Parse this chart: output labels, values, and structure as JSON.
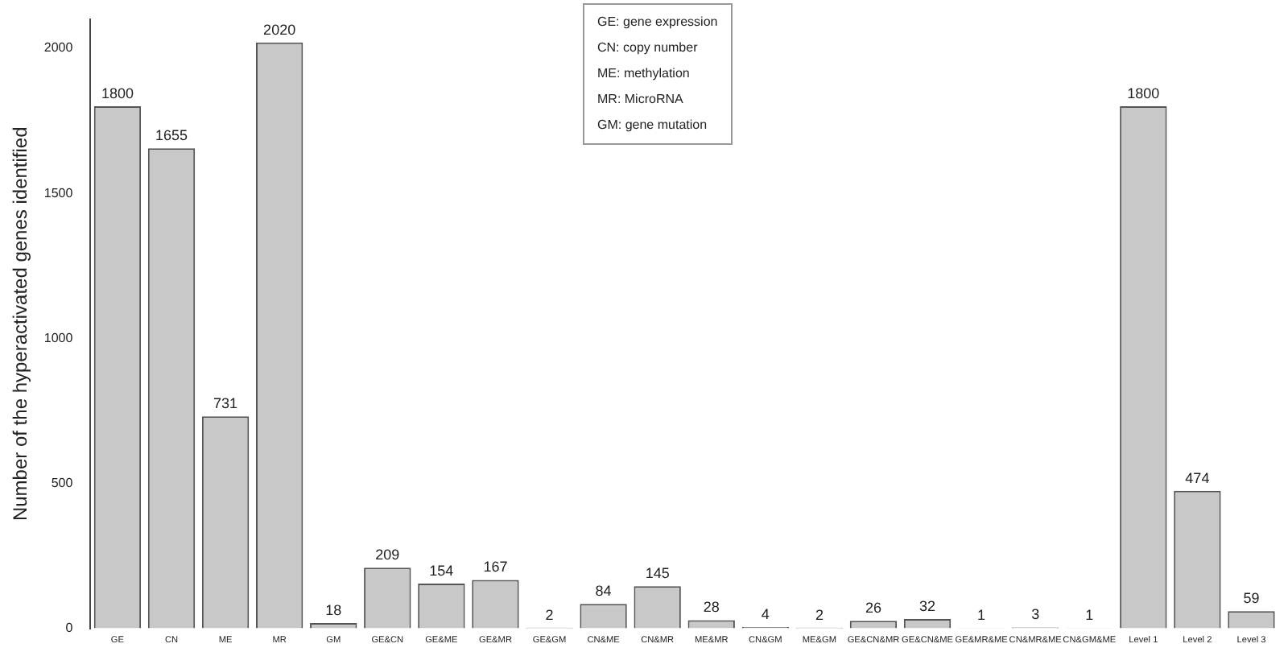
{
  "chart_data": {
    "type": "bar",
    "ylabel": "Number of the hyperactivated genes identified",
    "categories": [
      "GE",
      "CN",
      "ME",
      "MR",
      "GM",
      "GE&CN",
      "GE&ME",
      "GE&MR",
      "GE&GM",
      "CN&ME",
      "CN&MR",
      "ME&MR",
      "CN&GM",
      "ME&GM",
      "GE&CN&MR",
      "GE&CN&ME",
      "GE&MR&ME",
      "CN&MR&ME",
      "CN&GM&ME",
      "Level 1",
      "Level 2",
      "Level 3"
    ],
    "values": [
      1800,
      1655,
      731,
      2020,
      18,
      209,
      154,
      167,
      2,
      84,
      145,
      28,
      4,
      2,
      26,
      32,
      1,
      3,
      1,
      1800,
      474,
      59
    ],
    "color": "#c8c8c8",
    "ylim": [
      0,
      2100
    ],
    "yticks": [
      0,
      500,
      1000,
      1500,
      2000
    ],
    "data_labels": true,
    "grid": false,
    "legend": false,
    "annotations": [
      "GE: gene expression",
      "CN: copy number",
      "ME: methylation",
      "MR: MicroRNA",
      "GM: gene mutation"
    ]
  }
}
